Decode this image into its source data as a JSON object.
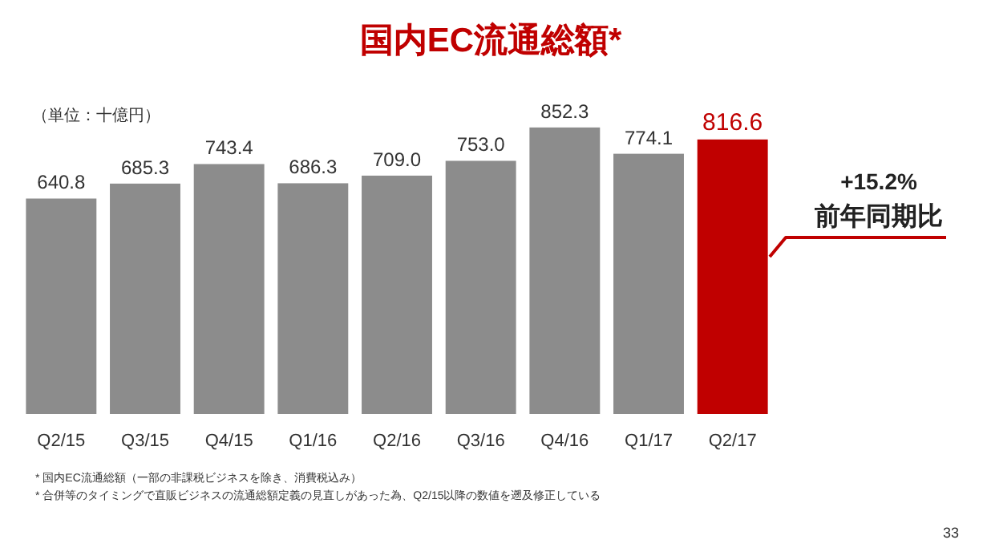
{
  "chart_data": {
    "type": "bar",
    "title": "国内EC流通総額*",
    "categories": [
      "Q2/15",
      "Q3/15",
      "Q4/15",
      "Q1/16",
      "Q2/16",
      "Q3/16",
      "Q4/16",
      "Q1/17",
      "Q2/17"
    ],
    "values": [
      640.8,
      685.3,
      743.4,
      686.3,
      709.0,
      753.0,
      852.3,
      774.1,
      816.6
    ],
    "colors": [
      "#8c8c8c",
      "#8c8c8c",
      "#8c8c8c",
      "#8c8c8c",
      "#8c8c8c",
      "#8c8c8c",
      "#8c8c8c",
      "#8c8c8c",
      "#c00000"
    ],
    "value_labels": [
      "640.8",
      "685.3",
      "743.4",
      "686.3",
      "709.0",
      "753.0",
      "852.3",
      "774.1",
      "816.6"
    ],
    "annotations": [
      "（単位：十億円）",
      "+15.2%\n前年同期比",
      "* 国内EC流通総額（一部の非課税ビジネスを除き、消費税込み）",
      "* 合併等のタイミングで直販ビジネスの流通総額定義の見直しがあった為、Q2/15以降の数値を遡及修正している",
      "33"
    ]
  }
}
